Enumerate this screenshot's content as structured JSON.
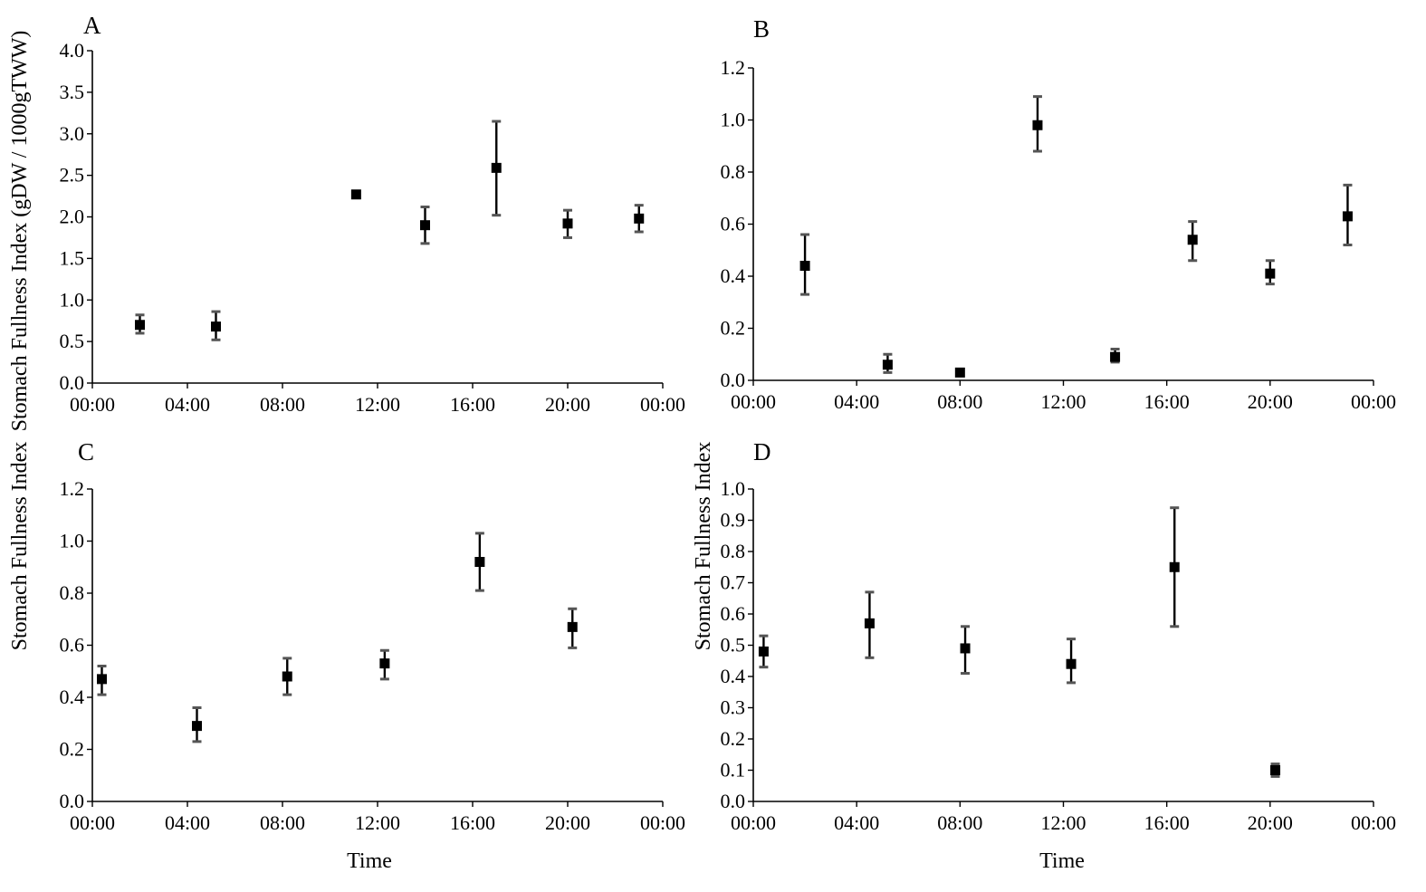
{
  "figure": {
    "ylabel_top": "Stomach Fullness Index (gDW / 1000gTWW)",
    "ylabel_left_bottom": "Stomach Fullness Index",
    "ylabel_right_bottom": "Stomach Fullness Index",
    "xlabel_bottom_left": "Time",
    "xlabel_bottom_right": "Time"
  },
  "chart_data": [
    {
      "panel": "A",
      "type": "scatter",
      "error_bars": true,
      "x_ticks": [
        "00:00",
        "04:00",
        "08:00",
        "12:00",
        "16:00",
        "20:00",
        "00:00"
      ],
      "y_ticks": [
        "0.0",
        "0.5",
        "1.0",
        "1.5",
        "2.0",
        "2.5",
        "3.0",
        "3.5",
        "4.0"
      ],
      "y_tick_values": [
        0,
        0.5,
        1.0,
        1.5,
        2.0,
        2.5,
        3.0,
        3.5,
        4.0
      ],
      "xlim": [
        0,
        24
      ],
      "ylim": [
        0,
        4.0
      ],
      "points": [
        {
          "x": 2.0,
          "y": 0.7,
          "lo": 0.6,
          "hi": 0.82
        },
        {
          "x": 5.2,
          "y": 0.68,
          "lo": 0.52,
          "hi": 0.86
        },
        {
          "x": 11.1,
          "y": 2.27,
          "lo": 2.27,
          "hi": 2.27
        },
        {
          "x": 14.0,
          "y": 1.9,
          "lo": 1.68,
          "hi": 2.12
        },
        {
          "x": 17.0,
          "y": 2.59,
          "lo": 2.02,
          "hi": 3.15
        },
        {
          "x": 20.0,
          "y": 1.92,
          "lo": 1.75,
          "hi": 2.08
        },
        {
          "x": 23.0,
          "y": 1.98,
          "lo": 1.82,
          "hi": 2.14
        }
      ]
    },
    {
      "panel": "B",
      "type": "scatter",
      "error_bars": true,
      "x_ticks": [
        "00:00",
        "04:00",
        "08:00",
        "12:00",
        "16:00",
        "20:00",
        "00:00"
      ],
      "y_ticks": [
        "0.0",
        "0.2",
        "0.4",
        "0.6",
        "0.8",
        "1.0",
        "1.2"
      ],
      "y_tick_values": [
        0,
        0.2,
        0.4,
        0.6,
        0.8,
        1.0,
        1.2
      ],
      "xlim": [
        0,
        24
      ],
      "ylim": [
        0,
        1.2
      ],
      "points": [
        {
          "x": 2.0,
          "y": 0.44,
          "lo": 0.33,
          "hi": 0.56
        },
        {
          "x": 5.2,
          "y": 0.06,
          "lo": 0.03,
          "hi": 0.1
        },
        {
          "x": 8.0,
          "y": 0.03,
          "lo": 0.03,
          "hi": 0.03
        },
        {
          "x": 11.0,
          "y": 0.98,
          "lo": 0.88,
          "hi": 1.09
        },
        {
          "x": 14.0,
          "y": 0.09,
          "lo": 0.07,
          "hi": 0.12
        },
        {
          "x": 17.0,
          "y": 0.54,
          "lo": 0.46,
          "hi": 0.61
        },
        {
          "x": 20.0,
          "y": 0.41,
          "lo": 0.37,
          "hi": 0.46
        },
        {
          "x": 23.0,
          "y": 0.63,
          "lo": 0.52,
          "hi": 0.75
        }
      ]
    },
    {
      "panel": "C",
      "type": "scatter",
      "error_bars": true,
      "x_ticks": [
        "00:00",
        "04:00",
        "08:00",
        "12:00",
        "16:00",
        "20:00",
        "00:00"
      ],
      "y_ticks": [
        "0.0",
        "0.2",
        "0.4",
        "0.6",
        "0.8",
        "1.0",
        "1.2"
      ],
      "y_tick_values": [
        0,
        0.2,
        0.4,
        0.6,
        0.8,
        1.0,
        1.2
      ],
      "xlim": [
        0,
        24
      ],
      "ylim": [
        0,
        1.2
      ],
      "points": [
        {
          "x": 0.4,
          "y": 0.47,
          "lo": 0.41,
          "hi": 0.52
        },
        {
          "x": 4.4,
          "y": 0.29,
          "lo": 0.23,
          "hi": 0.36
        },
        {
          "x": 8.2,
          "y": 0.48,
          "lo": 0.41,
          "hi": 0.55
        },
        {
          "x": 12.3,
          "y": 0.53,
          "lo": 0.47,
          "hi": 0.58
        },
        {
          "x": 16.3,
          "y": 0.92,
          "lo": 0.81,
          "hi": 1.03
        },
        {
          "x": 20.2,
          "y": 0.67,
          "lo": 0.59,
          "hi": 0.74
        }
      ]
    },
    {
      "panel": "D",
      "type": "scatter",
      "error_bars": true,
      "x_ticks": [
        "00:00",
        "04:00",
        "08:00",
        "12:00",
        "16:00",
        "20:00",
        "00:00"
      ],
      "y_ticks": [
        "0.0",
        "0.1",
        "0.2",
        "0.3",
        "0.4",
        "0.5",
        "0.6",
        "0.7",
        "0.8",
        "0.9",
        "1.0"
      ],
      "y_tick_values": [
        0,
        0.1,
        0.2,
        0.3,
        0.4,
        0.5,
        0.6,
        0.7,
        0.8,
        0.9,
        1.0
      ],
      "xlim": [
        0,
        24
      ],
      "ylim": [
        0,
        1.0
      ],
      "points": [
        {
          "x": 0.4,
          "y": 0.48,
          "lo": 0.43,
          "hi": 0.53
        },
        {
          "x": 4.5,
          "y": 0.57,
          "lo": 0.46,
          "hi": 0.67
        },
        {
          "x": 8.2,
          "y": 0.49,
          "lo": 0.41,
          "hi": 0.56
        },
        {
          "x": 12.3,
          "y": 0.44,
          "lo": 0.38,
          "hi": 0.52
        },
        {
          "x": 16.3,
          "y": 0.75,
          "lo": 0.56,
          "hi": 0.94
        },
        {
          "x": 20.2,
          "y": 0.1,
          "lo": 0.08,
          "hi": 0.12
        }
      ]
    }
  ]
}
